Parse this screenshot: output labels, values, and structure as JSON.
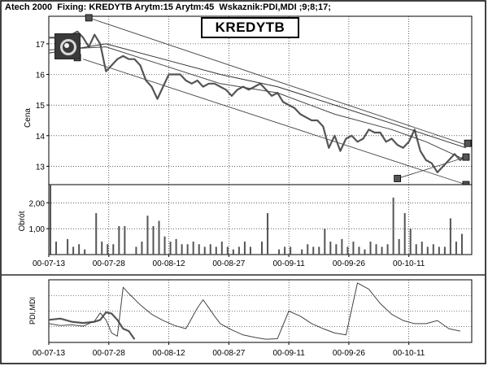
{
  "header": {
    "app": "Atech 2000",
    "fixing_label": "Fixing:",
    "fixing_value": "KREDYTB",
    "arytm1": "Arytm:15",
    "arytm2": "Arytm:45",
    "wskaznik": "Wskaznik:PDI,MDI ;9;8;17;"
  },
  "title": "KREDYTB",
  "chart_data": [
    {
      "type": "line",
      "panel": "price",
      "ylabel": "Cena",
      "ylim": [
        12.4,
        17.9
      ],
      "yticks": [
        "13",
        "14",
        "15",
        "16",
        "17"
      ],
      "ytick_values": [
        13,
        14,
        15,
        16,
        17
      ],
      "grid": true,
      "series": [
        {
          "name": "",
          "x": [
            0,
            1,
            2,
            3,
            4,
            5,
            6,
            7,
            8,
            9,
            10,
            11,
            12,
            13,
            14,
            15,
            16,
            17,
            18,
            19,
            20,
            21,
            22,
            23,
            24,
            25,
            26,
            27,
            28,
            29,
            30,
            31,
            32,
            33,
            34,
            35,
            36,
            37,
            38,
            39,
            40,
            41,
            42,
            43,
            44,
            45,
            46,
            47,
            48,
            49,
            50,
            51,
            52,
            53,
            54,
            55,
            56,
            57,
            58,
            59,
            60,
            61,
            62,
            63,
            64,
            65,
            66,
            67,
            68,
            69,
            70,
            71,
            72,
            73
          ],
          "values": [
            17.2,
            17.2,
            17.1,
            17.0,
            17.3,
            17.4,
            17.2,
            16.9,
            17.3,
            17.0,
            16.1,
            16.3,
            16.5,
            16.6,
            16.5,
            16.5,
            16.3,
            15.8,
            15.6,
            15.2,
            15.6,
            16.0,
            16.0,
            16.0,
            15.8,
            15.7,
            15.8,
            15.6,
            15.7,
            15.7,
            15.6,
            15.5,
            15.3,
            15.5,
            15.6,
            15.5,
            15.6,
            15.7,
            15.5,
            15.3,
            15.4,
            15.1,
            15.0,
            14.9,
            14.7,
            14.6,
            14.5,
            14.5,
            14.3,
            13.6,
            14.0,
            13.5,
            13.9,
            14.0,
            13.8,
            13.9,
            14.2,
            14.1,
            14.1,
            13.8,
            13.9,
            13.7,
            13.6,
            13.8,
            14.2,
            13.5,
            13.2,
            13.1,
            12.8,
            13.0,
            13.2,
            13.4,
            13.2,
            13.4
          ]
        },
        {
          "name": "Arytm:15",
          "x": [
            0,
            10,
            20,
            30,
            40,
            50,
            60,
            66,
            73
          ],
          "values": [
            16.8,
            16.9,
            16.3,
            15.7,
            15.4,
            14.7,
            14.2,
            13.8,
            13.2
          ]
        },
        {
          "name": "Arytm:45",
          "x": [
            0,
            10,
            20,
            30,
            40,
            50,
            60,
            73
          ],
          "values": [
            16.7,
            17.0,
            16.5,
            16.0,
            15.6,
            15.0,
            14.4,
            13.6
          ]
        }
      ],
      "trendlines": [
        {
          "x": [
            7,
            73
          ],
          "values": [
            17.85,
            13.7
          ]
        },
        {
          "x": [
            6,
            73
          ],
          "values": [
            16.5,
            12.4
          ]
        },
        {
          "x": [
            61,
            73
          ],
          "values": [
            12.6,
            13.3
          ]
        }
      ],
      "markers": [
        {
          "x": 7,
          "y": 17.85
        },
        {
          "x": 5,
          "y": 16.55
        },
        {
          "x": 61,
          "y": 12.6
        },
        {
          "x": 73,
          "y": 13.3
        },
        {
          "x": 73,
          "y": 12.4
        },
        {
          "x": 73.3,
          "y": 13.75
        }
      ]
    },
    {
      "type": "bar",
      "panel": "volume",
      "ylabel": "Obrót",
      "ylim": [
        0,
        2.7
      ],
      "yticks": [
        "1,00",
        "2,00"
      ],
      "ytick_values": [
        1,
        2
      ],
      "x": [
        0,
        1,
        3,
        4,
        5,
        6,
        8,
        9,
        10,
        11,
        12,
        13,
        15,
        16,
        17,
        18,
        19,
        20,
        21,
        22,
        23,
        24,
        25,
        26,
        27,
        28,
        29,
        30,
        31,
        32,
        33,
        34,
        35,
        37,
        38,
        40,
        41,
        42,
        44,
        45,
        46,
        47,
        48,
        49,
        50,
        51,
        52,
        53,
        54,
        55,
        56,
        57,
        58,
        59,
        60,
        61,
        62,
        63,
        64,
        65,
        66,
        67,
        68,
        69,
        70,
        71,
        72
      ],
      "values": [
        2.7,
        0.5,
        0.6,
        0.3,
        0.4,
        0.2,
        1.6,
        0.5,
        0.4,
        0.4,
        1.1,
        1.1,
        0.3,
        0.5,
        1.5,
        1.1,
        1.3,
        0.7,
        0.5,
        0.6,
        0.4,
        0.4,
        0.5,
        0.4,
        0.3,
        0.4,
        0.3,
        0.5,
        0.3,
        0.2,
        0.3,
        0.5,
        0.3,
        0.5,
        1.6,
        0.2,
        0.3,
        0.3,
        0.2,
        0.4,
        0.3,
        0.3,
        1.0,
        0.5,
        0.4,
        0.6,
        0.3,
        0.5,
        0.3,
        0.2,
        0.5,
        0.4,
        0.3,
        0.4,
        2.2,
        0.6,
        1.6,
        1.0,
        0.4,
        0.5,
        0.3,
        0.4,
        0.3,
        0.3,
        1.4,
        0.5,
        0.8
      ]
    },
    {
      "type": "line",
      "panel": "indicator",
      "ylabel": "PDI,MDI",
      "ylim": [
        0,
        1
      ],
      "series": [
        {
          "name": "PDI",
          "x": [
            0,
            2,
            4,
            6,
            8,
            9,
            10,
            11,
            12,
            13,
            14,
            15
          ],
          "values": [
            0.36,
            0.38,
            0.33,
            0.31,
            0.33,
            0.36,
            0.48,
            0.46,
            0.36,
            0.22,
            0.18,
            0.05
          ]
        },
        {
          "name": "MDI",
          "x": [
            0,
            2,
            4,
            6,
            8,
            9,
            10,
            11,
            12,
            13,
            14,
            16,
            18,
            20,
            22,
            24,
            26,
            27,
            28,
            29,
            30,
            32,
            34,
            36,
            38,
            40,
            42,
            44,
            46,
            48,
            50,
            52,
            54,
            56,
            58,
            60,
            62,
            64,
            66,
            68,
            70,
            72
          ],
          "values": [
            0.3,
            0.27,
            0.28,
            0.26,
            0.34,
            0.47,
            0.36,
            0.15,
            0.1,
            0.88,
            0.78,
            0.6,
            0.45,
            0.35,
            0.27,
            0.22,
            0.55,
            0.68,
            0.55,
            0.42,
            0.3,
            0.2,
            0.12,
            0.08,
            0.05,
            0.06,
            0.5,
            0.42,
            0.3,
            0.22,
            0.15,
            0.12,
            0.95,
            0.85,
            0.62,
            0.45,
            0.35,
            0.3,
            0.3,
            0.35,
            0.22,
            0.18
          ]
        }
      ]
    }
  ],
  "x_axis": {
    "tick_labels": [
      "00-07-13",
      "00-07-28",
      "00-08-12",
      "00-08-27",
      "00-09-11",
      "00-09-26",
      "00-10-11"
    ],
    "tick_positions": [
      0,
      10.5,
      21,
      31.5,
      42,
      52.5,
      63
    ]
  }
}
